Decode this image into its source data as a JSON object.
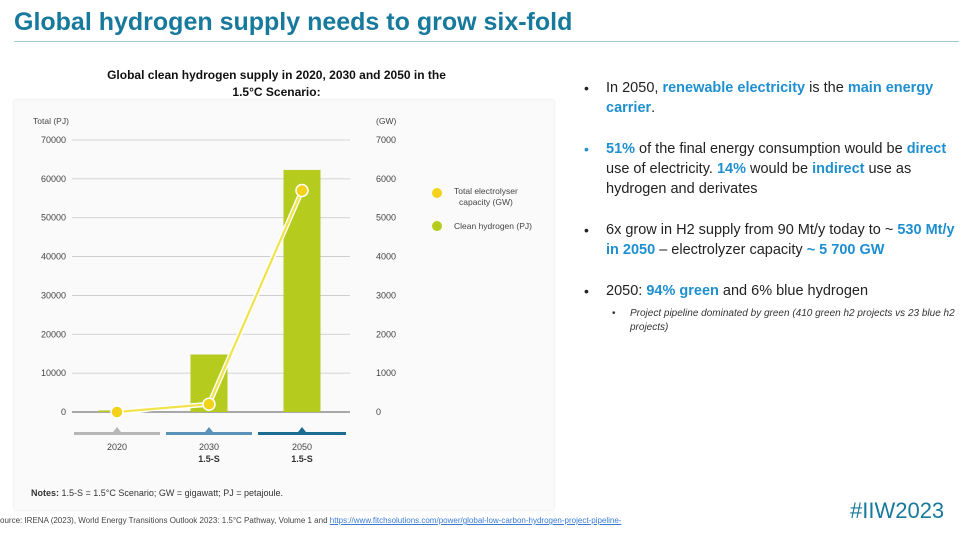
{
  "slide": {
    "title": "Global hydrogen supply needs to grow six-fold",
    "hashtag": "#IIW2023",
    "source_prefix": "ource: IRENA (2023), World Energy Transitions Outlook 2023: 1.5°C Pathway, Volume 1 and",
    "source_link": "https://www.fitchsolutions.com/power/global-low-carbon-hydrogen-project-pipeline-",
    "notes_label": "Notes:",
    "notes_text": " 1.5-S = 1.5°C Scenario; GW = gigawatt; PJ = petajoule."
  },
  "bullets": [
    {
      "segments": [
        {
          "t": "In 2050, "
        },
        {
          "t": "renewable electricity",
          "hl": true
        },
        {
          "t": " is the "
        },
        {
          "t": "main energy carrier",
          "hl": true
        },
        {
          "t": "."
        }
      ]
    },
    {
      "segments": [
        {
          "t": "51%",
          "hl": true
        },
        {
          "t": " of the final energy consumption would be "
        },
        {
          "t": "direct",
          "hl": true
        },
        {
          "t": " use of electricity. "
        },
        {
          "t": "14%",
          "hl": true
        },
        {
          "t": " would be "
        },
        {
          "t": "indirect",
          "hl": true
        },
        {
          "t": " use as hydrogen and derivates"
        }
      ]
    },
    {
      "segments": [
        {
          "t": "6x grow in H2 supply from 90 Mt/y today to ~ "
        },
        {
          "t": "530 Mt/y in 2050",
          "hl": true
        },
        {
          "t": " – electrolyzer capacity "
        },
        {
          "t": "~ 5 700 GW",
          "hl": true
        }
      ]
    },
    {
      "segments": [
        {
          "t": "2050: "
        },
        {
          "t": "94% green",
          "hl": true
        },
        {
          "t": " and 6% blue hydrogen"
        }
      ],
      "sub": "Project pipeline dominated by green (410 green h2 projects vs 23 blue h2 projects)"
    }
  ],
  "colors": {
    "accent": "#17799c",
    "highlight": "#1e8fcf",
    "bar": "#b5cb1d",
    "line": "#f2e24a",
    "marker": "#f3d21a"
  },
  "chart_data": {
    "type": "bar",
    "title": "Global clean hydrogen supply in 2020, 2030 and 2050 in the 1.5°C Scenario:",
    "ylabel": "Total (PJ)",
    "y2label": "(GW)",
    "categories": [
      "2020",
      "2030",
      "2050"
    ],
    "category_sublabels": [
      "",
      "1.5-S",
      "1.5-S"
    ],
    "ylim": [
      0,
      70000
    ],
    "y2lim": [
      0,
      7000
    ],
    "yticks": [
      0,
      10000,
      20000,
      30000,
      40000,
      50000,
      60000,
      70000
    ],
    "ytick_labels": [
      "0",
      "10000",
      "20000",
      "30000",
      "40000",
      "50000",
      "60000",
      "70000"
    ],
    "y2ticks": [
      0,
      1000,
      2000,
      3000,
      4000,
      5000,
      6000,
      7000
    ],
    "y2tick_labels": [
      "0",
      "1000",
      "2000",
      "3000",
      "4000",
      "5000",
      "6000",
      "7000"
    ],
    "series": [
      {
        "name": "Clean hydrogen (PJ)",
        "type": "bar",
        "axis": "left",
        "values": [
          400,
          14800,
          62300
        ]
      },
      {
        "name": "Total electrolyser capacity (GW)",
        "type": "line",
        "axis": "right",
        "values": [
          0,
          200,
          5700
        ]
      }
    ],
    "legend": [
      "Total electrolyser capacity (GW)",
      "Clean hydrogen (PJ)"
    ],
    "legend_position": "right"
  }
}
